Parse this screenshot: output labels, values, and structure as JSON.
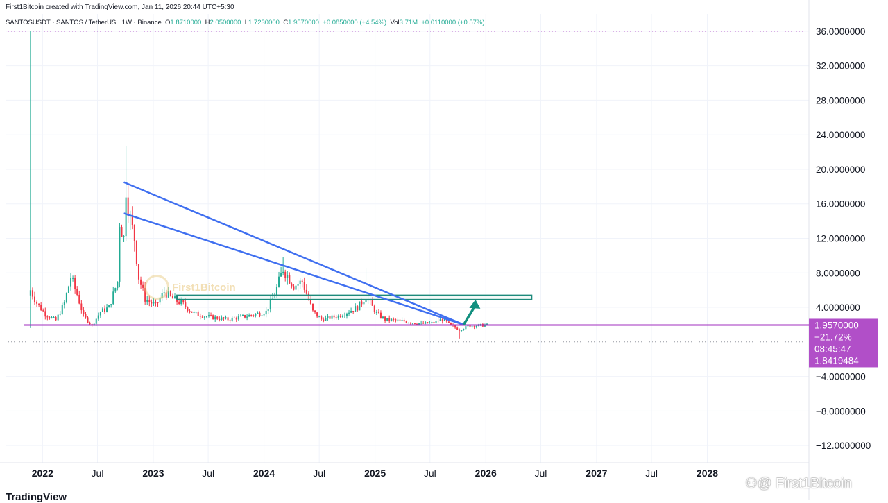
{
  "header": {
    "created_by": "First1Bitcoin created with TradingView.com, Jan 11, 2026 20:44 UTC+5:30",
    "symbol": "SANTOSUSDT · SANTOS / TetherUS · 1W · Binance",
    "o_label": "O",
    "o_value": "1.8710000",
    "h_label": "H",
    "h_value": "2.0500000",
    "l_label": "L",
    "l_value": "1.7230000",
    "c_label": "C",
    "c_value": "1.9570000",
    "change": "+0.0850000 (+4.54%)",
    "vol_label": "Vol",
    "vol_value": "3.71M",
    "vol_change": "+0.0110000 (+0.57%)"
  },
  "watermark": {
    "text": "First1Bitcoin",
    "bottom_text": "⚇@ First1Bitcoin"
  },
  "footer": {
    "logo_text": "TradingView"
  },
  "colors": {
    "up": "#22ab94",
    "down": "#f23645",
    "trendline": "#3f6ff0",
    "zone": "#1e8a7c",
    "support": "#a12fbf",
    "price_tag": "#b14fc8",
    "arrow": "#12907f"
  },
  "chart_data": {
    "type": "candlestick",
    "title": "SANTOSUSDT · SANTOS / TetherUS · 1W · Binance",
    "ylim": [
      -14,
      38
    ],
    "y_ticks": [
      36,
      32,
      28,
      24,
      20,
      16,
      12,
      8,
      4,
      -4,
      -8,
      -12
    ],
    "y_tick_labels": [
      "36.0000000",
      "32.0000000",
      "28.0000000",
      "24.0000000",
      "20.0000000",
      "16.0000000",
      "12.0000000",
      "8.0000000",
      "4.0000000",
      "−4.0000000",
      "−8.0000000",
      "−12.0000000"
    ],
    "x_range": [
      "2021-09-01",
      "2028-12-01"
    ],
    "x_ticks": [
      {
        "label": "2022",
        "date": "2022-01-01",
        "bold": true
      },
      {
        "label": "Jul",
        "date": "2022-07-01",
        "bold": false
      },
      {
        "label": "2023",
        "date": "2023-01-01",
        "bold": true
      },
      {
        "label": "Jul",
        "date": "2023-07-01",
        "bold": false
      },
      {
        "label": "2024",
        "date": "2024-01-01",
        "bold": true
      },
      {
        "label": "Jul",
        "date": "2024-07-01",
        "bold": false
      },
      {
        "label": "2025",
        "date": "2025-01-01",
        "bold": true
      },
      {
        "label": "Jul",
        "date": "2025-07-01",
        "bold": false
      },
      {
        "label": "2026",
        "date": "2026-01-01",
        "bold": true
      },
      {
        "label": "Jul",
        "date": "2026-07-01",
        "bold": false
      },
      {
        "label": "2027",
        "date": "2027-01-01",
        "bold": true
      },
      {
        "label": "Jul",
        "date": "2027-07-01",
        "bold": false
      },
      {
        "label": "2028",
        "date": "2028-01-01",
        "bold": true
      }
    ],
    "closes": [
      {
        "date": "2021-11-22",
        "value": 6.0,
        "high": 36.0,
        "low": 1.6
      },
      {
        "date": "2021-12-13",
        "value": 4.5
      },
      {
        "date": "2022-01-10",
        "value": 3.2
      },
      {
        "date": "2022-02-14",
        "value": 2.5
      },
      {
        "date": "2022-03-14",
        "value": 4.5
      },
      {
        "date": "2022-04-04",
        "value": 7.5
      },
      {
        "date": "2022-04-25",
        "value": 5.5
      },
      {
        "date": "2022-05-16",
        "value": 3.0
      },
      {
        "date": "2022-06-13",
        "value": 1.9
      },
      {
        "date": "2022-07-11",
        "value": 3.5
      },
      {
        "date": "2022-08-08",
        "value": 4.0
      },
      {
        "date": "2022-09-05",
        "value": 7.0
      },
      {
        "date": "2022-09-12",
        "value": 14.0
      },
      {
        "date": "2022-09-26",
        "value": 12.0
      },
      {
        "date": "2022-10-03",
        "value": 18.0,
        "high": 22.7
      },
      {
        "date": "2022-10-17",
        "value": 14.0
      },
      {
        "date": "2022-10-31",
        "value": 12.0
      },
      {
        "date": "2022-11-14",
        "value": 7.5
      },
      {
        "date": "2022-12-05",
        "value": 5.0
      },
      {
        "date": "2023-01-09",
        "value": 4.2
      },
      {
        "date": "2023-02-06",
        "value": 5.8
      },
      {
        "date": "2023-03-06",
        "value": 5.0
      },
      {
        "date": "2023-04-03",
        "value": 4.5
      },
      {
        "date": "2023-05-15",
        "value": 3.3
      },
      {
        "date": "2023-07-03",
        "value": 2.9
      },
      {
        "date": "2023-09-04",
        "value": 2.6
      },
      {
        "date": "2023-11-06",
        "value": 3.0
      },
      {
        "date": "2024-01-08",
        "value": 3.5
      },
      {
        "date": "2024-02-05",
        "value": 5.5
      },
      {
        "date": "2024-03-04",
        "value": 8.5,
        "high": 9.8
      },
      {
        "date": "2024-04-08",
        "value": 6.5
      },
      {
        "date": "2024-05-06",
        "value": 7.0
      },
      {
        "date": "2024-06-10",
        "value": 3.5
      },
      {
        "date": "2024-07-08",
        "value": 2.6
      },
      {
        "date": "2024-09-02",
        "value": 3.0
      },
      {
        "date": "2024-11-04",
        "value": 4.0
      },
      {
        "date": "2024-12-02",
        "value": 5.2,
        "high": 8.6
      },
      {
        "date": "2025-01-06",
        "value": 3.3
      },
      {
        "date": "2025-02-03",
        "value": 2.6
      },
      {
        "date": "2025-04-07",
        "value": 2.4
      },
      {
        "date": "2025-06-02",
        "value": 2.1
      },
      {
        "date": "2025-07-07",
        "value": 2.2
      },
      {
        "date": "2025-08-11",
        "value": 2.6
      },
      {
        "date": "2025-09-08",
        "value": 1.9
      },
      {
        "date": "2025-10-06",
        "value": 1.4,
        "low": 0.4
      },
      {
        "date": "2025-11-03",
        "value": 1.8
      },
      {
        "date": "2025-12-08",
        "value": 1.9
      },
      {
        "date": "2026-01-05",
        "value": 1.957
      }
    ],
    "trendlines": [
      {
        "name": "",
        "from": {
          "date": "2022-09-26",
          "value": 18.5
        },
        "to": {
          "date": "2025-10-20",
          "value": 2.0
        }
      },
      {
        "name": "",
        "from": {
          "date": "2022-09-26",
          "value": 14.9
        },
        "to": {
          "date": "2025-10-20",
          "value": 2.0
        }
      }
    ],
    "resistance_zone": {
      "from": "2023-03-20",
      "to": "2026-06-01",
      "low": 4.9,
      "high": 5.4
    },
    "arrow": {
      "from": {
        "date": "2025-10-20",
        "value": 2.0
      },
      "to": {
        "date": "2025-11-28",
        "value": 4.9
      }
    },
    "support_line": {
      "value": 1.957,
      "from": "2021-11-01"
    },
    "dotted_levels": [
      36.0,
      1.957,
      0.0
    ],
    "last_price": "1.9570000",
    "last_change": "−21.72%",
    "countdown": "08:45:47",
    "second_price": "1.8419484",
    "grid": true
  }
}
